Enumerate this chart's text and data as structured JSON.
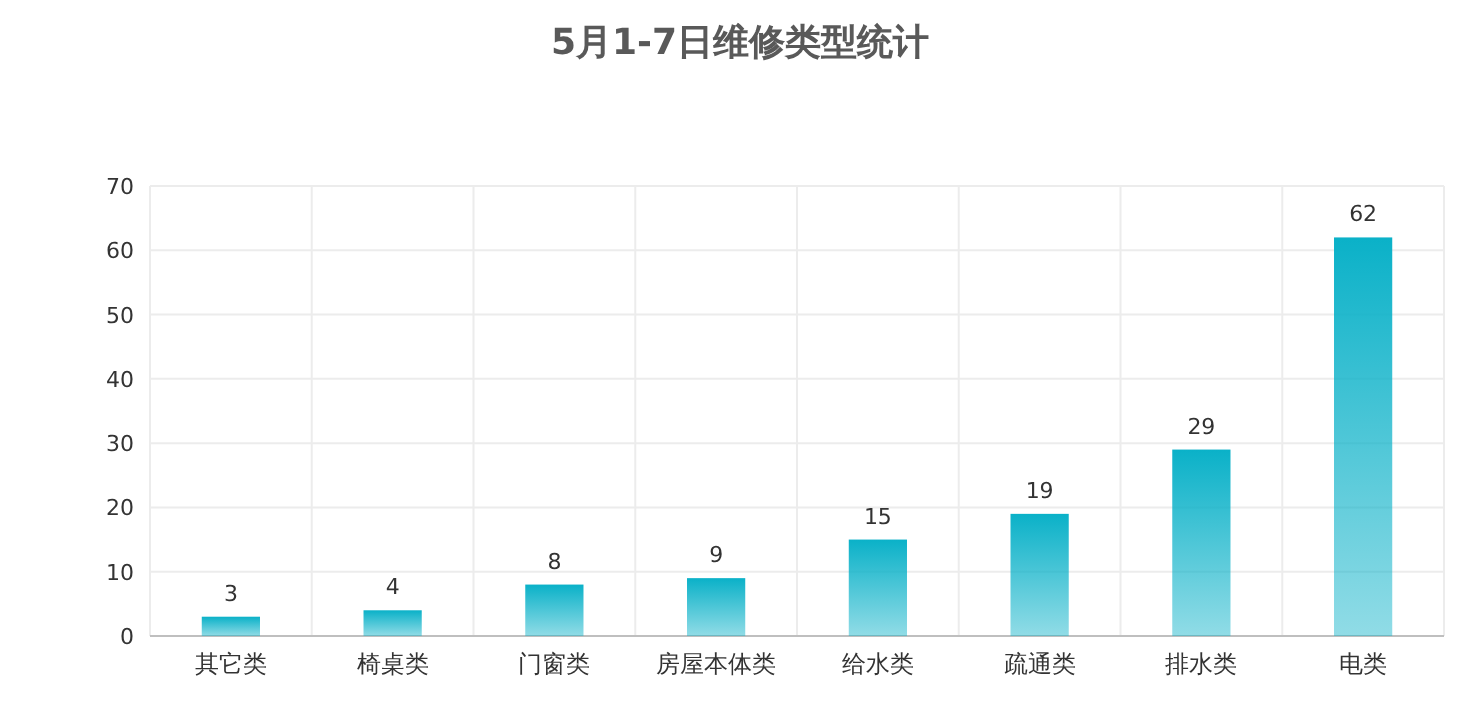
{
  "chart_data": {
    "type": "bar",
    "title": "5月1-7日维修类型统计",
    "categories": [
      "其它类",
      "椅桌类",
      "门窗类",
      "房屋本体类",
      "给水类",
      "疏通类",
      "排水类",
      "电类"
    ],
    "values": [
      3,
      4,
      8,
      9,
      15,
      19,
      29,
      62
    ],
    "color": "#0ab1c8",
    "ylim": [
      0,
      70
    ],
    "yticks": [
      0,
      10,
      20,
      30,
      40,
      50,
      60,
      70
    ],
    "grid": true,
    "data_labels": true
  }
}
